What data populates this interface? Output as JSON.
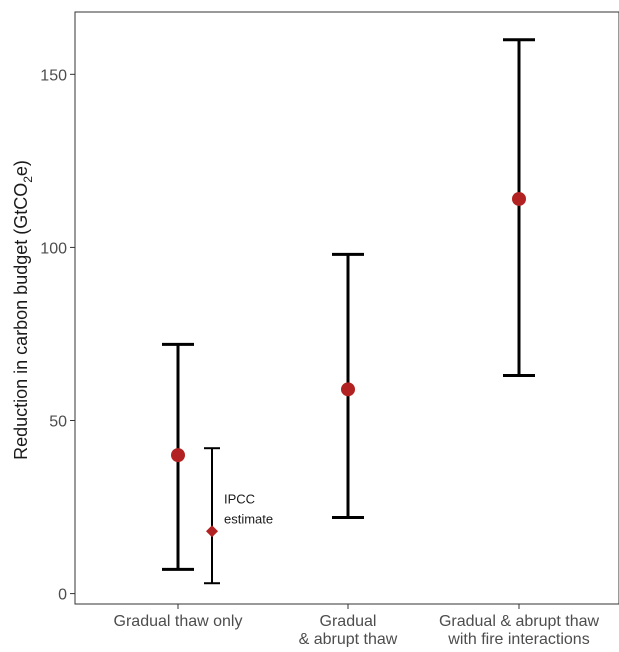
{
  "chart_data": {
    "type": "scatter",
    "title": "",
    "ylabel": {
      "prefix": "Reduction in carbon budget (GtCO",
      "subscript": "2",
      "suffix": "e)"
    },
    "ylim": [
      -3,
      168
    ],
    "y_ticks": [
      0,
      50,
      100,
      150
    ],
    "y_tick_labels": [
      "0",
      "50",
      "100",
      "150"
    ],
    "grid": false,
    "categories": [
      [
        "Gradual thaw only"
      ],
      [
        "Gradual",
        "& abrupt thaw"
      ],
      [
        "Gradual & abrupt thaw",
        "with fire interactions"
      ]
    ],
    "series": [
      {
        "marker": "circle",
        "color": "#b22222",
        "points": [
          {
            "category": 0,
            "value": 40,
            "low": 7,
            "high": 72
          },
          {
            "category": 1,
            "value": 59,
            "low": 22,
            "high": 98
          },
          {
            "category": 2,
            "value": 114,
            "low": 63,
            "high": 160
          }
        ]
      },
      {
        "marker": "diamond",
        "color": "#b22222",
        "points": [
          {
            "category": 0,
            "value": 18,
            "low": 3,
            "high": 42
          }
        ],
        "annotation": [
          "IPCC",
          "estimate"
        ]
      }
    ]
  }
}
